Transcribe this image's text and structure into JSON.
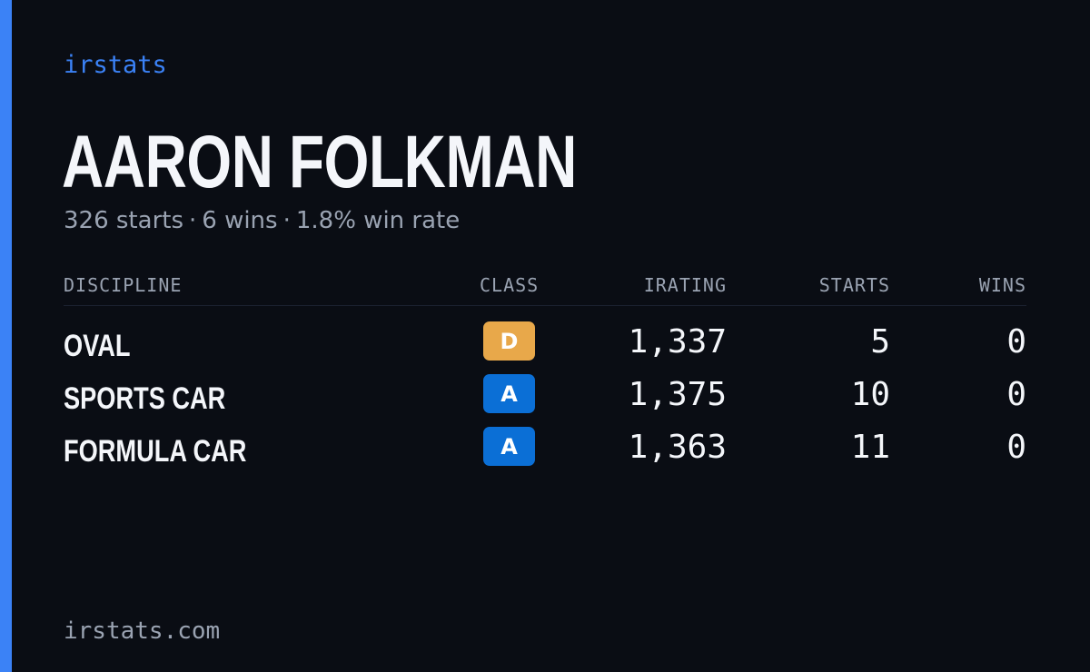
{
  "brand": "irstats",
  "driver": {
    "name": "AARON FOLKMAN",
    "starts": "326 starts",
    "wins": "6 wins",
    "win_rate": "1.8% win rate",
    "separator": "·"
  },
  "table": {
    "headers": {
      "discipline": "DISCIPLINE",
      "class": "CLASS",
      "irating": "IRATING",
      "starts": "STARTS",
      "wins": "WINS"
    },
    "rows": [
      {
        "discipline": "OVAL",
        "class": "D",
        "class_color": "#e8a84a",
        "irating": "1,337",
        "starts": "5",
        "wins": "0"
      },
      {
        "discipline": "SPORTS CAR",
        "class": "A",
        "class_color": "#0b6fd6",
        "irating": "1,375",
        "starts": "10",
        "wins": "0"
      },
      {
        "discipline": "FORMULA CAR",
        "class": "A",
        "class_color": "#0b6fd6",
        "irating": "1,363",
        "starts": "11",
        "wins": "0"
      }
    ]
  },
  "footer": "irstats.com",
  "colors": {
    "accent": "#3b82f6",
    "background": "#0a0d14",
    "text_primary": "#f4f6fa",
    "text_muted": "#9aa3b2"
  }
}
